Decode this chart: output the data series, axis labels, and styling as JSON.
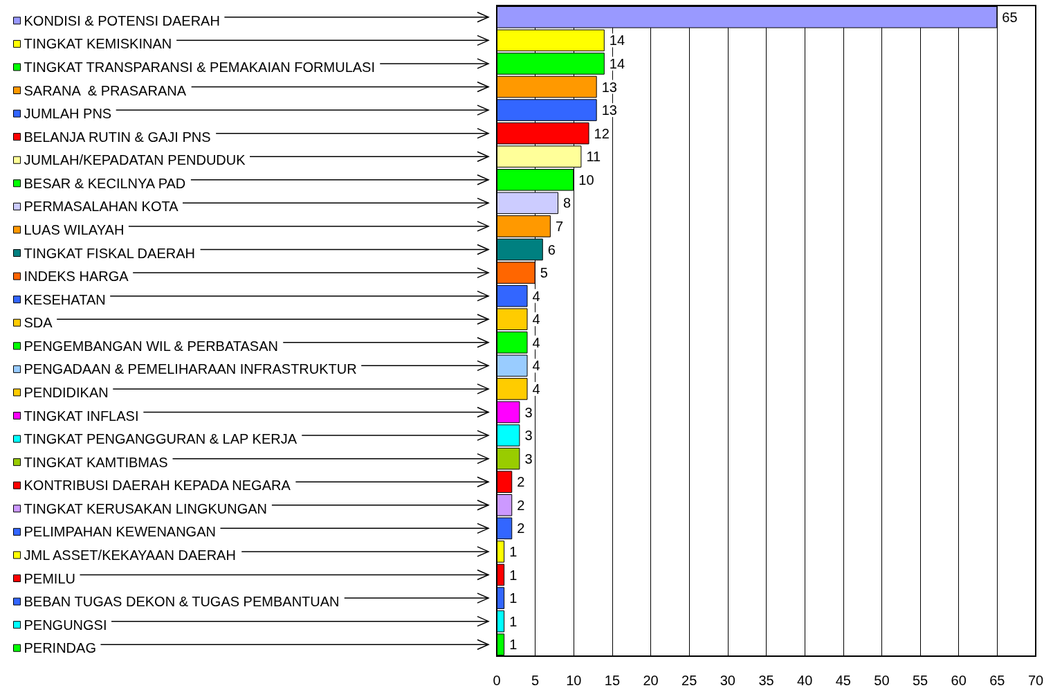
{
  "chart_data": {
    "type": "bar",
    "orientation": "horizontal",
    "stacked": true,
    "categories": [
      null,
      null,
      null,
      null,
      null,
      null,
      null,
      null,
      null,
      null,
      null,
      null,
      null,
      null,
      null,
      null,
      null,
      null,
      null,
      null,
      null,
      null,
      null,
      null,
      null,
      null,
      null,
      null
    ],
    "series": [
      {
        "name": "KONDISI & POTENSI DAERAH",
        "color": "#9999ff",
        "values": [
          65,
          null,
          null,
          null,
          null,
          null,
          null,
          null,
          null,
          null,
          null,
          null,
          null,
          null,
          null,
          null,
          null,
          null,
          null,
          null,
          null,
          null,
          null,
          null,
          null,
          null,
          null,
          null
        ]
      },
      {
        "name": "TINGKAT KEMISKINAN",
        "color": "#ffff00",
        "values": [
          null,
          14,
          null,
          null,
          null,
          null,
          null,
          null,
          null,
          null,
          null,
          null,
          null,
          null,
          null,
          null,
          null,
          null,
          null,
          null,
          null,
          null,
          null,
          null,
          null,
          null,
          null,
          null
        ]
      },
      {
        "name": "TINGKAT TRANSPARANSI & PEMAKAIAN FORMULASI",
        "color": "#00ff00",
        "values": [
          null,
          null,
          14,
          null,
          null,
          null,
          null,
          null,
          null,
          null,
          null,
          null,
          null,
          null,
          null,
          null,
          null,
          null,
          null,
          null,
          null,
          null,
          null,
          null,
          null,
          null,
          null,
          null
        ]
      },
      {
        "name": "SARANA  & PRASARANA",
        "color": "#ff9900",
        "values": [
          null,
          null,
          null,
          13,
          null,
          null,
          null,
          null,
          null,
          null,
          null,
          null,
          null,
          null,
          null,
          null,
          null,
          null,
          null,
          null,
          null,
          null,
          null,
          null,
          null,
          null,
          null,
          null
        ]
      },
      {
        "name": "JUMLAH PNS",
        "color": "#3366ff",
        "values": [
          null,
          null,
          null,
          null,
          13,
          null,
          null,
          null,
          null,
          null,
          null,
          null,
          null,
          null,
          null,
          null,
          null,
          null,
          null,
          null,
          null,
          null,
          null,
          null,
          null,
          null,
          null,
          null
        ]
      },
      {
        "name": "BELANJA RUTIN & GAJI PNS",
        "color": "#ff0000",
        "values": [
          null,
          null,
          null,
          null,
          null,
          12,
          null,
          null,
          null,
          null,
          null,
          null,
          null,
          null,
          null,
          null,
          null,
          null,
          null,
          null,
          null,
          null,
          null,
          null,
          null,
          null,
          null,
          null
        ]
      },
      {
        "name": "JUMLAH/KEPADATAN PENDUDUK",
        "color": "#ffff99",
        "values": [
          null,
          null,
          null,
          null,
          null,
          null,
          11,
          null,
          null,
          null,
          null,
          null,
          null,
          null,
          null,
          null,
          null,
          null,
          null,
          null,
          null,
          null,
          null,
          null,
          null,
          null,
          null,
          null
        ]
      },
      {
        "name": "BESAR & KECILNYA PAD",
        "color": "#00ff00",
        "values": [
          null,
          null,
          null,
          null,
          null,
          null,
          null,
          10,
          null,
          null,
          null,
          null,
          null,
          null,
          null,
          null,
          null,
          null,
          null,
          null,
          null,
          null,
          null,
          null,
          null,
          null,
          null,
          null
        ]
      },
      {
        "name": "PERMASALAHAN KOTA",
        "color": "#ccccff",
        "values": [
          null,
          null,
          null,
          null,
          null,
          null,
          null,
          null,
          8,
          null,
          null,
          null,
          null,
          null,
          null,
          null,
          null,
          null,
          null,
          null,
          null,
          null,
          null,
          null,
          null,
          null,
          null,
          null
        ]
      },
      {
        "name": "LUAS WILAYAH",
        "color": "#ff9900",
        "values": [
          null,
          null,
          null,
          null,
          null,
          null,
          null,
          null,
          null,
          7,
          null,
          null,
          null,
          null,
          null,
          null,
          null,
          null,
          null,
          null,
          null,
          null,
          null,
          null,
          null,
          null,
          null,
          null
        ]
      },
      {
        "name": "TINGKAT FISKAL DAERAH",
        "color": "#008080",
        "values": [
          null,
          null,
          null,
          null,
          null,
          null,
          null,
          null,
          null,
          null,
          6,
          null,
          null,
          null,
          null,
          null,
          null,
          null,
          null,
          null,
          null,
          null,
          null,
          null,
          null,
          null,
          null,
          null
        ]
      },
      {
        "name": "INDEKS HARGA",
        "color": "#ff6600",
        "values": [
          null,
          null,
          null,
          null,
          null,
          null,
          null,
          null,
          null,
          null,
          null,
          5,
          null,
          null,
          null,
          null,
          null,
          null,
          null,
          null,
          null,
          null,
          null,
          null,
          null,
          null,
          null,
          null
        ]
      },
      {
        "name": "KESEHATAN",
        "color": "#3366ff",
        "values": [
          null,
          null,
          null,
          null,
          null,
          null,
          null,
          null,
          null,
          null,
          null,
          null,
          4,
          null,
          null,
          null,
          null,
          null,
          null,
          null,
          null,
          null,
          null,
          null,
          null,
          null,
          null,
          null
        ]
      },
      {
        "name": "SDA",
        "color": "#ffcc00",
        "values": [
          null,
          null,
          null,
          null,
          null,
          null,
          null,
          null,
          null,
          null,
          null,
          null,
          null,
          4,
          null,
          null,
          null,
          null,
          null,
          null,
          null,
          null,
          null,
          null,
          null,
          null,
          null,
          null
        ]
      },
      {
        "name": "PENGEMBANGAN WIL & PERBATASAN",
        "color": "#00ff00",
        "values": [
          null,
          null,
          null,
          null,
          null,
          null,
          null,
          null,
          null,
          null,
          null,
          null,
          null,
          null,
          4,
          null,
          null,
          null,
          null,
          null,
          null,
          null,
          null,
          null,
          null,
          null,
          null,
          null
        ]
      },
      {
        "name": "PENGADAAN & PEMELIHARAAN INFRASTRUKTUR",
        "color": "#99ccff",
        "values": [
          null,
          null,
          null,
          null,
          null,
          null,
          null,
          null,
          null,
          null,
          null,
          null,
          null,
          null,
          null,
          4,
          null,
          null,
          null,
          null,
          null,
          null,
          null,
          null,
          null,
          null,
          null,
          null
        ]
      },
      {
        "name": "PENDIDIKAN",
        "color": "#ffcc00",
        "values": [
          null,
          null,
          null,
          null,
          null,
          null,
          null,
          null,
          null,
          null,
          null,
          null,
          null,
          null,
          null,
          null,
          4,
          null,
          null,
          null,
          null,
          null,
          null,
          null,
          null,
          null,
          null,
          null
        ]
      },
      {
        "name": "TINGKAT INFLASI",
        "color": "#ff00ff",
        "values": [
          null,
          null,
          null,
          null,
          null,
          null,
          null,
          null,
          null,
          null,
          null,
          null,
          null,
          null,
          null,
          null,
          null,
          3,
          null,
          null,
          null,
          null,
          null,
          null,
          null,
          null,
          null,
          null
        ]
      },
      {
        "name": "TINGKAT PENGANGGURAN & LAP KERJA",
        "color": "#00ffff",
        "values": [
          null,
          null,
          null,
          null,
          null,
          null,
          null,
          null,
          null,
          null,
          null,
          null,
          null,
          null,
          null,
          null,
          null,
          null,
          3,
          null,
          null,
          null,
          null,
          null,
          null,
          null,
          null,
          null
        ]
      },
      {
        "name": "TINGKAT KAMTIBMAS",
        "color": "#99cc00",
        "values": [
          null,
          null,
          null,
          null,
          null,
          null,
          null,
          null,
          null,
          null,
          null,
          null,
          null,
          null,
          null,
          null,
          null,
          null,
          null,
          3,
          null,
          null,
          null,
          null,
          null,
          null,
          null,
          null
        ]
      },
      {
        "name": "KONTRIBUSI DAERAH KEPADA NEGARA",
        "color": "#ff0000",
        "values": [
          null,
          null,
          null,
          null,
          null,
          null,
          null,
          null,
          null,
          null,
          null,
          null,
          null,
          null,
          null,
          null,
          null,
          null,
          null,
          null,
          2,
          null,
          null,
          null,
          null,
          null,
          null,
          null
        ]
      },
      {
        "name": "TINGKAT KERUSAKAN LINGKUNGAN",
        "color": "#cc99ff",
        "values": [
          null,
          null,
          null,
          null,
          null,
          null,
          null,
          null,
          null,
          null,
          null,
          null,
          null,
          null,
          null,
          null,
          null,
          null,
          null,
          null,
          null,
          2,
          null,
          null,
          null,
          null,
          null,
          null
        ]
      },
      {
        "name": "PELIMPAHAN KEWENANGAN",
        "color": "#3366ff",
        "values": [
          null,
          null,
          null,
          null,
          null,
          null,
          null,
          null,
          null,
          null,
          null,
          null,
          null,
          null,
          null,
          null,
          null,
          null,
          null,
          null,
          null,
          null,
          2,
          null,
          null,
          null,
          null,
          null
        ]
      },
      {
        "name": "JML ASSET/KEKAYAAN DAERAH",
        "color": "#ffff00",
        "values": [
          null,
          null,
          null,
          null,
          null,
          null,
          null,
          null,
          null,
          null,
          null,
          null,
          null,
          null,
          null,
          null,
          null,
          null,
          null,
          null,
          null,
          null,
          null,
          1,
          null,
          null,
          null,
          null
        ]
      },
      {
        "name": "PEMILU",
        "color": "#ff0000",
        "values": [
          null,
          null,
          null,
          null,
          null,
          null,
          null,
          null,
          null,
          null,
          null,
          null,
          null,
          null,
          null,
          null,
          null,
          null,
          null,
          null,
          null,
          null,
          null,
          null,
          1,
          null,
          null,
          null
        ]
      },
      {
        "name": "BEBAN TUGAS DEKON & TUGAS PEMBANTUAN",
        "color": "#3366ff",
        "values": [
          null,
          null,
          null,
          null,
          null,
          null,
          null,
          null,
          null,
          null,
          null,
          null,
          null,
          null,
          null,
          null,
          null,
          null,
          null,
          null,
          null,
          null,
          null,
          null,
          null,
          1,
          null,
          null
        ]
      },
      {
        "name": "PENGUNGSI",
        "color": "#00ffff",
        "values": [
          null,
          null,
          null,
          null,
          null,
          null,
          null,
          null,
          null,
          null,
          null,
          null,
          null,
          null,
          null,
          null,
          null,
          null,
          null,
          null,
          null,
          null,
          null,
          null,
          null,
          null,
          1,
          null
        ]
      },
      {
        "name": "PERINDAG",
        "color": "#00ff00",
        "values": [
          null,
          null,
          null,
          null,
          null,
          null,
          null,
          null,
          null,
          null,
          null,
          null,
          null,
          null,
          null,
          null,
          null,
          null,
          null,
          null,
          null,
          null,
          null,
          null,
          null,
          null,
          null,
          1
        ]
      }
    ],
    "xlim": [
      0,
      70
    ],
    "xticks": [
      0,
      5,
      10,
      15,
      20,
      25,
      30,
      35,
      40,
      45,
      50,
      55,
      60,
      65,
      70
    ],
    "grid": "x",
    "data_labels": true,
    "legend": "left"
  }
}
